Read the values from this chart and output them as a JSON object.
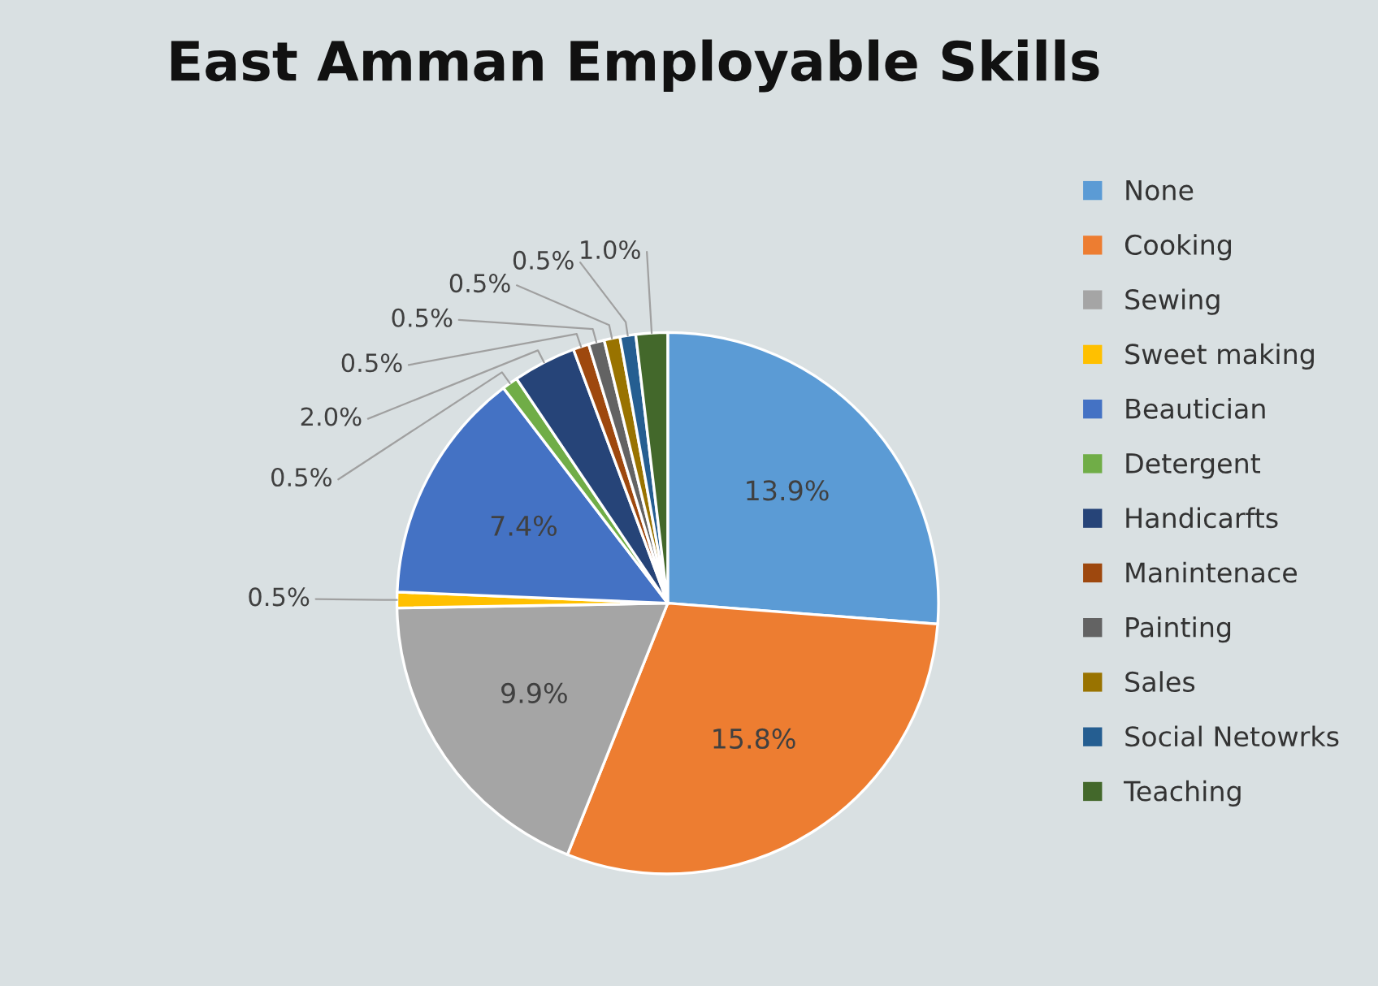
{
  "chart_data": {
    "type": "pie",
    "title": "East Amman Employable Skills",
    "categories": [
      "None",
      "Cooking",
      "Sewing",
      "Sweet making",
      "Beautician",
      "Detergent",
      "Handicarfts",
      "Manintenace",
      "Painting",
      "Sales",
      "Social Netowrks",
      "Teaching"
    ],
    "values": [
      13.9,
      15.8,
      9.9,
      0.5,
      7.4,
      0.5,
      2.0,
      0.5,
      0.5,
      0.5,
      0.5,
      1.0
    ],
    "value_labels": [
      "13.9%",
      "15.8%",
      "9.9%",
      "0.5%",
      "7.4%",
      "0.5%",
      "2.0%",
      "0.5%",
      "0.5%",
      "0.5%",
      "0.5%",
      "1.0%"
    ],
    "colors": [
      "#5b9bd5",
      "#ed7d31",
      "#a5a5a5",
      "#ffc000",
      "#4472c4",
      "#70ad47",
      "#264478",
      "#9e480e",
      "#636363",
      "#997300",
      "#255e91",
      "#43682b"
    ],
    "legend": "right"
  }
}
